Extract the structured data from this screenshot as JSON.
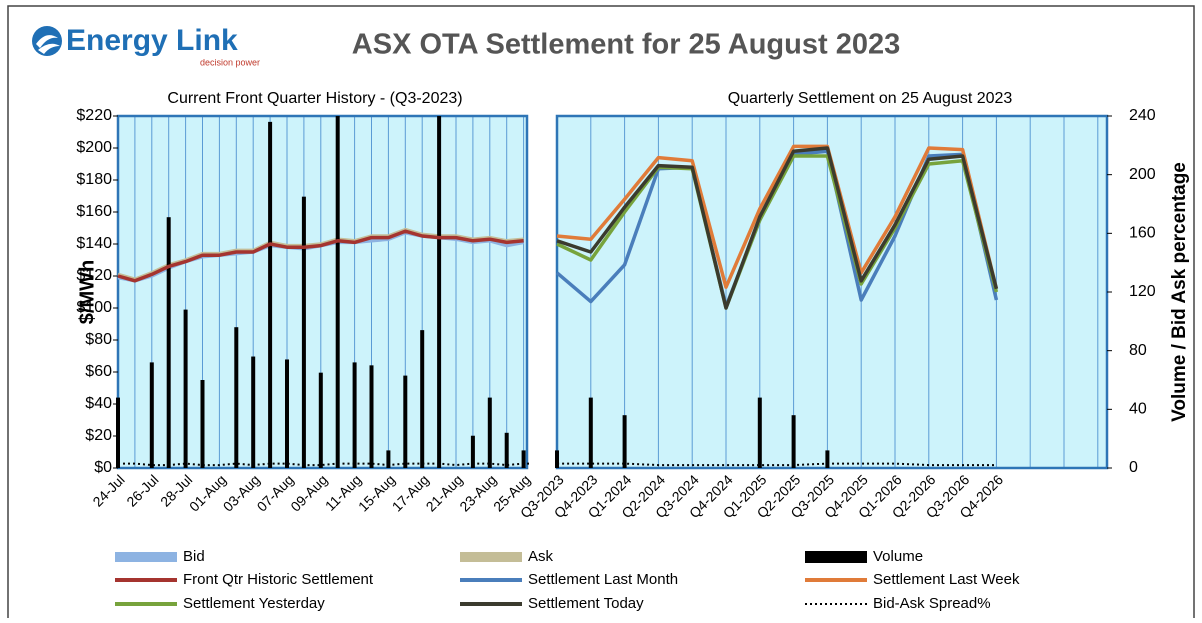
{
  "header": {
    "logo": "Energy Link",
    "tagline": "decision power"
  },
  "chart_data": {
    "type": "combo",
    "title": "ASX OTA Settlement for 25 August 2023",
    "panel_titles": [
      "Current Front Quarter History - (Q3-2023)",
      "Quarterly Settlement on 25 August 2023"
    ],
    "ylabel": "$/MWh",
    "y2label": "Volume / Bid Ask percentage",
    "categories": [
      "24-Jul",
      null,
      "26-Jul",
      null,
      "28-Jul",
      null,
      "01-Aug",
      null,
      "03-Aug",
      null,
      "07-Aug",
      null,
      "09-Aug",
      null,
      "11-Aug",
      null,
      "15-Aug",
      null,
      "17-Aug",
      null,
      "21-Aug",
      null,
      "23-Aug",
      null,
      "25-Aug",
      "Q3-2023",
      "Q4-2023",
      "Q1-2024",
      "Q2-2024",
      "Q3-2024",
      "Q4-2024",
      "Q1-2025",
      "Q2-2025",
      "Q3-2025",
      "Q4-2025",
      "Q1-2026",
      "Q2-2026",
      "Q3-2026",
      "Q4-2026"
    ],
    "ylim": [
      0,
      220
    ],
    "yticks": [
      {
        "value": 0,
        "label": "$0"
      },
      {
        "value": 20,
        "label": "$20"
      },
      {
        "value": 40,
        "label": "$40"
      },
      {
        "value": 60,
        "label": "$60"
      },
      {
        "value": 80,
        "label": "$80"
      },
      {
        "value": 100,
        "label": "$100"
      },
      {
        "value": 120,
        "label": "$120"
      },
      {
        "value": 140,
        "label": "$140"
      },
      {
        "value": 160,
        "label": "$160"
      },
      {
        "value": 180,
        "label": "$180"
      },
      {
        "value": 200,
        "label": "$200"
      },
      {
        "value": 220,
        "label": "$220"
      }
    ],
    "y2lim": [
      0,
      240
    ],
    "y2ticks": [
      0,
      40,
      80,
      120,
      160,
      200,
      240
    ],
    "series": [
      {
        "name": "Bid",
        "color": "#8db3e2",
        "kind": "line",
        "values": [
          119,
          117,
          120,
          125,
          129,
          132,
          133,
          134,
          135,
          139,
          138,
          137,
          139,
          141,
          141,
          142,
          143,
          147,
          145,
          144,
          143,
          141,
          142,
          139,
          141,
          null,
          null,
          null,
          null,
          null,
          null,
          null,
          null,
          null,
          null,
          null,
          null,
          null,
          null
        ]
      },
      {
        "name": "Ask",
        "color": "#c4bd97",
        "kind": "line",
        "values": [
          121,
          118,
          122,
          127,
          130,
          134,
          134,
          136,
          136,
          141,
          139,
          139,
          140,
          143,
          142,
          145,
          145,
          149,
          146,
          145,
          145,
          143,
          144,
          142,
          143,
          null,
          null,
          null,
          null,
          null,
          null,
          null,
          null,
          null,
          null,
          null,
          null,
          null,
          null
        ]
      },
      {
        "name": "Volume",
        "color": "#000000",
        "kind": "bar",
        "axis": "y2",
        "values": [
          48,
          0,
          72,
          171,
          108,
          60,
          0,
          96,
          76,
          236,
          74,
          185,
          65,
          240,
          72,
          70,
          12,
          63,
          94,
          240,
          0,
          22,
          48,
          24,
          12,
          12,
          48,
          36,
          0,
          0,
          0,
          48,
          36,
          12,
          0,
          0,
          0,
          0,
          0
        ]
      },
      {
        "name": "Front Qtr Historic Settlement",
        "color": "#a5342f",
        "kind": "line",
        "values": [
          120,
          117,
          121,
          126,
          129,
          133,
          133,
          135,
          135,
          140,
          138,
          138,
          139,
          142,
          141,
          144,
          144,
          148,
          145,
          144,
          144,
          142,
          143,
          141,
          142,
          null,
          null,
          null,
          null,
          null,
          null,
          null,
          null,
          null,
          null,
          null,
          null,
          null,
          null
        ]
      },
      {
        "name": "Settlement Last Month",
        "color": "#4a7ebb",
        "kind": "line",
        "values": [
          null,
          null,
          null,
          null,
          null,
          null,
          null,
          null,
          null,
          null,
          null,
          null,
          null,
          null,
          null,
          null,
          null,
          null,
          null,
          null,
          null,
          null,
          null,
          null,
          null,
          122,
          104,
          127,
          187,
          188,
          101,
          155,
          196,
          198,
          105,
          145,
          195,
          196,
          105
        ]
      },
      {
        "name": "Settlement Last Week",
        "color": "#e07b39",
        "kind": "line",
        "values": [
          null,
          null,
          null,
          null,
          null,
          null,
          null,
          null,
          null,
          null,
          null,
          null,
          null,
          null,
          null,
          null,
          null,
          null,
          null,
          null,
          null,
          null,
          null,
          null,
          null,
          145,
          143,
          168,
          194,
          192,
          113,
          162,
          201,
          201,
          122,
          157,
          200,
          199,
          112
        ]
      },
      {
        "name": "Settlement Yesterday",
        "color": "#77a33c",
        "kind": "line",
        "values": [
          null,
          null,
          null,
          null,
          null,
          null,
          null,
          null,
          null,
          null,
          null,
          null,
          null,
          null,
          null,
          null,
          null,
          null,
          null,
          null,
          null,
          null,
          null,
          null,
          null,
          140,
          130,
          160,
          188,
          187,
          100,
          155,
          195,
          195,
          115,
          150,
          190,
          192,
          110
        ]
      },
      {
        "name": "Settlement Today",
        "color": "#3b3b2e",
        "kind": "line",
        "values": [
          null,
          null,
          null,
          null,
          null,
          null,
          null,
          null,
          null,
          null,
          null,
          null,
          null,
          null,
          null,
          null,
          null,
          null,
          null,
          null,
          null,
          null,
          null,
          null,
          null,
          142,
          135,
          163,
          189,
          188,
          100,
          157,
          198,
          200,
          117,
          152,
          193,
          195,
          112
        ]
      },
      {
        "name": "Bid-Ask Spread%",
        "color": "#000000",
        "kind": "dotted",
        "axis": "y2",
        "values": [
          3,
          3,
          2,
          2,
          3,
          2,
          2,
          3,
          2,
          3,
          3,
          2,
          2,
          3,
          3,
          3,
          2,
          3,
          3,
          3,
          2,
          3,
          3,
          2,
          3,
          3,
          3,
          3,
          2,
          2,
          2,
          2,
          2,
          3,
          3,
          3,
          2,
          2,
          2
        ]
      }
    ]
  }
}
